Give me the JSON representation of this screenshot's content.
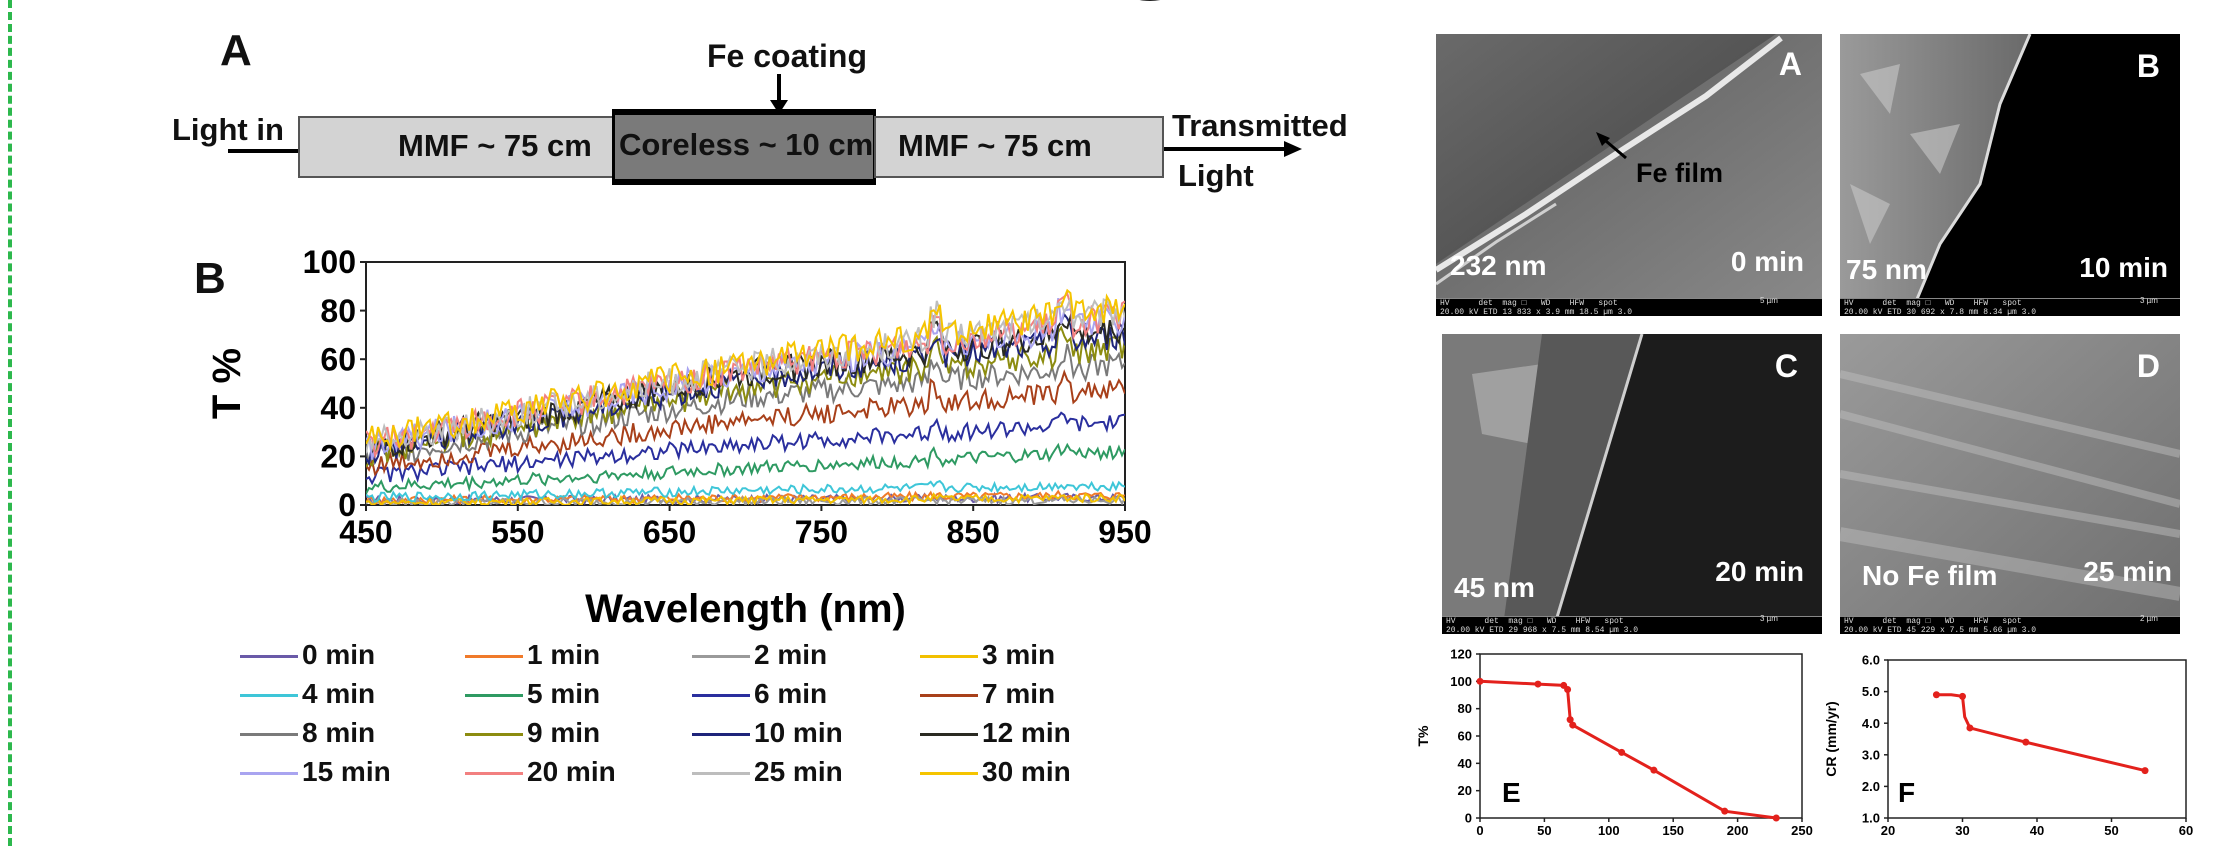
{
  "panel_a": {
    "letter": "A",
    "light_in": "Light in",
    "fe_coating": "Fe coating",
    "mmf_left": "MMF ~ 75 cm",
    "coreless": "Coreless ~ 10 cm",
    "mmf_right": "MMF ~ 75 cm",
    "transmitted": "Transmitted",
    "light": "Light"
  },
  "panel_b": {
    "letter": "B",
    "legend": [
      {
        "label": "0 min",
        "color": "#6a5aa8"
      },
      {
        "label": "1 min",
        "color": "#f07a2a"
      },
      {
        "label": "2 min",
        "color": "#9a9a9a"
      },
      {
        "label": "3 min",
        "color": "#f2c000"
      },
      {
        "label": "4 min",
        "color": "#3ec6d8"
      },
      {
        "label": "5 min",
        "color": "#2e9a62"
      },
      {
        "label": "6 min",
        "color": "#2a2f9e"
      },
      {
        "label": "7 min",
        "color": "#a8401a"
      },
      {
        "label": "8 min",
        "color": "#7a7a7a"
      },
      {
        "label": "9 min",
        "color": "#8c8c10"
      },
      {
        "label": "10 min",
        "color": "#1e247a"
      },
      {
        "label": "12 min",
        "color": "#2a2a22"
      },
      {
        "label": "15 min",
        "color": "#a9a4f0"
      },
      {
        "label": "20 min",
        "color": "#f28080"
      },
      {
        "label": "25 min",
        "color": "#bdbdbd"
      },
      {
        "label": "30 min",
        "color": "#f5c400"
      }
    ]
  },
  "sem": {
    "a": {
      "letter": "A",
      "left": "232 nm",
      "right": "0 min",
      "annotation": "Fe film"
    },
    "b": {
      "letter": "B",
      "left": "75 nm",
      "right": "10 min"
    },
    "c": {
      "letter": "C",
      "left": "45 nm",
      "right": "20 min"
    },
    "d": {
      "letter": "D",
      "left": "No Fe film",
      "right": "25 min"
    },
    "bar_a": "HV      det  mag □   WD    HFW   spot\n20.00 kV ETD 13 833 x 3.9 mm 18.5 µm 3.0",
    "bar_b": "HV      det  mag □   WD    HFW   spot\n20.00 kV ETD 30 692 x 7.8 mm 8.34 µm 3.0",
    "bar_c": "HV      det  mag □   WD    HFW   spot\n20.00 kV ETD 29 968 x 7.5 mm 8.54 µm 3.0",
    "bar_d": "HV      det  mag □   WD    HFW   spot\n20.00 kV ETD 45 229 x 7.5 mm 5.66 µm 3.0",
    "scale_a": "5 µm",
    "scale_b": "3 µm",
    "scale_c": "3 µm",
    "scale_d": "2 µm"
  },
  "chart_data": [
    {
      "id": "B",
      "type": "line",
      "xlabel": "Wavelength (nm)",
      "ylabel": "T %",
      "xlim": [
        450,
        950
      ],
      "ylim": [
        0,
        100
      ],
      "xticks": [
        450,
        550,
        650,
        750,
        850,
        950
      ],
      "yticks": [
        0,
        20,
        40,
        60,
        80,
        100
      ],
      "legend_position": "bottom",
      "series": [
        {
          "name": "0 min",
          "color": "#6a5aa8",
          "x": [
            450,
            950
          ],
          "y": [
            2,
            3
          ],
          "trend": [
            [
              450,
              2
            ],
            [
              950,
              3
            ]
          ]
        },
        {
          "name": "1 min",
          "color": "#f07a2a",
          "trend": [
            [
              450,
              2
            ],
            [
              950,
              4
            ]
          ]
        },
        {
          "name": "2 min",
          "color": "#9a9a9a",
          "trend": [
            [
              450,
              1
            ],
            [
              950,
              2
            ]
          ]
        },
        {
          "name": "3 min",
          "color": "#f2c000",
          "trend": [
            [
              450,
              1
            ],
            [
              950,
              3
            ]
          ]
        },
        {
          "name": "4 min",
          "color": "#3ec6d8",
          "trend": [
            [
              450,
              3
            ],
            [
              700,
              6
            ],
            [
              950,
              8
            ]
          ]
        },
        {
          "name": "5 min",
          "color": "#2e9a62",
          "trend": [
            [
              450,
              7
            ],
            [
              700,
              15
            ],
            [
              950,
              22
            ]
          ]
        },
        {
          "name": "6 min",
          "color": "#2a2f9e",
          "trend": [
            [
              450,
              12
            ],
            [
              700,
              25
            ],
            [
              950,
              34
            ]
          ]
        },
        {
          "name": "7 min",
          "color": "#a8401a",
          "trend": [
            [
              450,
              16
            ],
            [
              700,
              35
            ],
            [
              950,
              48
            ]
          ]
        },
        {
          "name": "8 min",
          "color": "#7a7a7a",
          "trend": [
            [
              450,
              20
            ],
            [
              700,
              44
            ],
            [
              950,
              58
            ]
          ]
        },
        {
          "name": "9 min",
          "color": "#8c8c10",
          "trend": [
            [
              450,
              21
            ],
            [
              700,
              48
            ],
            [
              950,
              65
            ]
          ]
        },
        {
          "name": "10 min",
          "color": "#1e247a",
          "trend": [
            [
              450,
              22
            ],
            [
              700,
              52
            ],
            [
              950,
              70
            ]
          ]
        },
        {
          "name": "12 min",
          "color": "#2a2a22",
          "trend": [
            [
              450,
              23
            ],
            [
              700,
              54
            ],
            [
              950,
              73
            ]
          ]
        },
        {
          "name": "15 min",
          "color": "#a9a4f0",
          "trend": [
            [
              450,
              24
            ],
            [
              700,
              55
            ],
            [
              950,
              76
            ]
          ]
        },
        {
          "name": "20 min",
          "color": "#f28080",
          "trend": [
            [
              450,
              25
            ],
            [
              700,
              56
            ],
            [
              950,
              78
            ]
          ]
        },
        {
          "name": "25 min",
          "color": "#bdbdbd",
          "trend": [
            [
              450,
              25
            ],
            [
              700,
              57
            ],
            [
              950,
              80
            ]
          ]
        },
        {
          "name": "30 min",
          "color": "#f5c400",
          "trend": [
            [
              450,
              26
            ],
            [
              700,
              58
            ],
            [
              950,
              82
            ]
          ]
        }
      ]
    },
    {
      "id": "E",
      "type": "line",
      "letter": "E",
      "ylabel": "T%",
      "xlim": [
        0,
        250
      ],
      "ylim": [
        0,
        120
      ],
      "xticks": [
        0,
        50,
        100,
        150,
        200,
        250
      ],
      "yticks": [
        0,
        20,
        40,
        60,
        80,
        100,
        120
      ],
      "series": [
        {
          "color": "#e3211c",
          "x": [
            0,
            45,
            65,
            68,
            70,
            72,
            110,
            135,
            190,
            230
          ],
          "y": [
            100,
            98,
            97,
            94,
            72,
            68,
            48,
            35,
            5,
            0
          ]
        }
      ]
    },
    {
      "id": "F",
      "type": "line",
      "letter": "F",
      "ylabel": "CR (mm/yr)",
      "xlim": [
        20,
        60
      ],
      "ylim": [
        1.0,
        6.0
      ],
      "xticks": [
        20,
        30,
        40,
        50,
        60
      ],
      "yticks": [
        1.0,
        2.0,
        3.0,
        4.0,
        5.0,
        6.0
      ],
      "series": [
        {
          "color": "#e3211c",
          "x": [
            26.5,
            28.5,
            30,
            30.3,
            31,
            38.5,
            54.5
          ],
          "y": [
            4.9,
            4.9,
            4.85,
            4.2,
            3.85,
            3.4,
            2.5
          ]
        }
      ]
    }
  ]
}
